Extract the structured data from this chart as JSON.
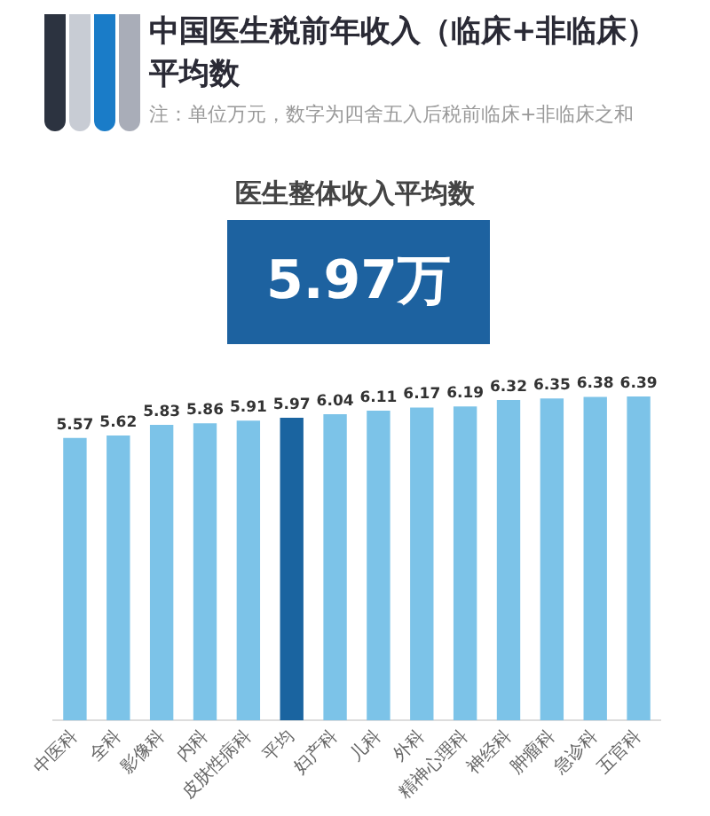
{
  "chart_data": {
    "type": "bar",
    "title": "中国医生税前年收入（临床+非临床）平均数",
    "subtitle": "注：单位万元，数字为四舍五入后税前临床+非临床之和",
    "annotations": [
      "医生整体收入平均数",
      "5.97万"
    ],
    "categories": [
      "中医科",
      "全科",
      "影像科",
      "内科",
      "皮肤性病科",
      "平均",
      "妇产科",
      "儿科",
      "外科",
      "精神心理科",
      "神经科",
      "肿瘤科",
      "急诊科",
      "五官科"
    ],
    "values": [
      5.57,
      5.62,
      5.83,
      5.86,
      5.91,
      5.97,
      6.04,
      6.11,
      6.17,
      6.19,
      6.32,
      6.35,
      6.38,
      6.39
    ],
    "colors": [
      "#7cc3e8",
      "#7cc3e8",
      "#7cc3e8",
      "#7cc3e8",
      "#7cc3e8",
      "#1a64a0",
      "#7cc3e8",
      "#7cc3e8",
      "#7cc3e8",
      "#7cc3e8",
      "#7cc3e8",
      "#7cc3e8",
      "#7cc3e8",
      "#7cc3e8"
    ],
    "tick_labels": "x",
    "data_labels": true,
    "grid": false,
    "legend": false
  }
}
